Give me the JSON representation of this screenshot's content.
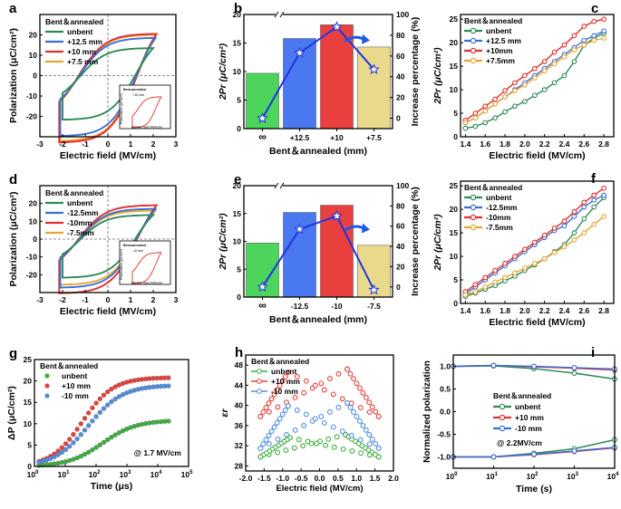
{
  "chart_data": [
    {
      "id": "a",
      "type": "line",
      "panel_label": "a",
      "xlabel": "Electric field (MV/cm)",
      "ylabel": "Polarization (μC/cm²)",
      "xlim": [
        -3,
        3
      ],
      "ylim": [
        -30,
        30
      ],
      "xticks": [
        -3,
        -2,
        -1,
        0,
        1,
        2,
        3
      ],
      "yticks": [
        -20,
        -10,
        0,
        10,
        20
      ],
      "legend_title": "Bent＆annealed",
      "series": [
        {
          "name": "unbent",
          "color": "#2e8b57",
          "emax": 2.0,
          "pmax": 13.5,
          "pr": 5.0
        },
        {
          "name": "+12.5 mm",
          "color": "#3a6fd8",
          "emax": 2.1,
          "pmax": 18.5,
          "pr": 8.0
        },
        {
          "name": "+10 mm",
          "color": "#e0302c",
          "emax": 2.15,
          "pmax": 20.5,
          "pr": 9.0
        },
        {
          "name": "+7.5 mm",
          "color": "#e8a531",
          "emax": 2.1,
          "pmax": 20.0,
          "pr": 7.0
        }
      ],
      "inset": {
        "title": "Bent-annealed",
        "legend": "+10 mm",
        "xlabel": "Electric field (MV/cm)",
        "ylabel": "Polarization (μC/cm²)"
      }
    },
    {
      "id": "b",
      "type": "bar",
      "panel_label": "b",
      "categories": [
        "∞",
        "+12.5",
        "+10",
        "+7.5"
      ],
      "values": [
        9.7,
        15.8,
        18.2,
        14.3
      ],
      "bar_colors": [
        "#4cd45c",
        "#4a78f0",
        "#ea4040",
        "#e9d98a"
      ],
      "ylabel": "2Pr (μC/cm²)",
      "ylim": [
        0,
        20
      ],
      "yticks": [
        0,
        5,
        10,
        15,
        20
      ],
      "xlabel": "Bent＆annealed (mm)",
      "y2label": "Increase percentage (%)",
      "y2lim": [
        -10,
        100
      ],
      "y2ticks": [
        0,
        20,
        40,
        60,
        80,
        100
      ],
      "line_values": [
        0,
        63,
        88,
        47
      ]
    },
    {
      "id": "c",
      "type": "line",
      "panel_label": "c",
      "xlabel": "Electric field (MV/cm)",
      "ylabel": "2Pr (μC/cm²)",
      "xlim": [
        1.35,
        2.9
      ],
      "ylim": [
        0,
        26
      ],
      "xticks": [
        1.4,
        1.6,
        1.8,
        2.0,
        2.2,
        2.4,
        2.6,
        2.8
      ],
      "yticks": [
        0,
        5,
        10,
        15,
        20,
        25
      ],
      "legend_title": "Bent＆annealed",
      "x": [
        1.4,
        1.5,
        1.6,
        1.7,
        1.8,
        1.9,
        2.0,
        2.1,
        2.2,
        2.3,
        2.4,
        2.5,
        2.6,
        2.7,
        2.8
      ],
      "series": [
        {
          "name": "unbent",
          "color": "#2e8b57",
          "values": [
            1.8,
            2.2,
            3.0,
            4.0,
            5.3,
            6.5,
            7.5,
            8.8,
            10.0,
            11.5,
            13.0,
            16.0,
            19.5,
            21.0,
            22.0
          ]
        },
        {
          "name": "+12.5 mm",
          "color": "#3a6fd8",
          "values": [
            3.0,
            4.0,
            5.5,
            7.0,
            8.5,
            10.0,
            11.5,
            13.0,
            14.5,
            16.0,
            17.5,
            19.0,
            20.5,
            21.5,
            22.5
          ]
        },
        {
          "name": "+10mm",
          "color": "#e0302c",
          "values": [
            3.5,
            5.0,
            6.5,
            8.0,
            9.8,
            11.5,
            13.0,
            14.5,
            16.0,
            18.0,
            19.5,
            21.5,
            23.5,
            24.5,
            25.0
          ]
        },
        {
          "name": "+7.5mm",
          "color": "#e8a531",
          "values": [
            3.0,
            4.0,
            5.5,
            7.0,
            8.5,
            9.8,
            11.0,
            12.5,
            14.0,
            15.5,
            17.0,
            18.5,
            19.5,
            20.5,
            21.0
          ]
        }
      ]
    },
    {
      "id": "d",
      "type": "line",
      "panel_label": "d",
      "xlabel": "Electric field (MV/cm)",
      "ylabel": "Polarization (μC/cm²)",
      "xlim": [
        -3,
        3
      ],
      "ylim": [
        -30,
        30
      ],
      "xticks": [
        -3,
        -2,
        -1,
        0,
        1,
        2,
        3
      ],
      "yticks": [
        -20,
        -10,
        0,
        10,
        20
      ],
      "legend_title": "Bent＆annealed",
      "series": [
        {
          "name": "unbent",
          "color": "#2e8b57",
          "emax": 2.0,
          "pmax": 13.5,
          "pr": 5.0
        },
        {
          "name": "-12.5mm",
          "color": "#3a6fd8",
          "emax": 2.1,
          "pmax": 17.0,
          "pr": 7.5
        },
        {
          "name": "-10mm",
          "color": "#e0302c",
          "emax": 2.15,
          "pmax": 19.0,
          "pr": 8.5
        },
        {
          "name": "-7.5mm",
          "color": "#e8a531",
          "emax": 2.1,
          "pmax": 16.0,
          "pr": 5.0
        }
      ],
      "inset": {
        "title": "Bent-annealed",
        "legend": "-10 mm",
        "xlabel": "Electric field (MV/cm)",
        "ylabel": "Polarization (μC/cm²)"
      }
    },
    {
      "id": "e",
      "type": "bar",
      "panel_label": "e",
      "categories": [
        "∞",
        "-12.5",
        "-10",
        "-7.5"
      ],
      "values": [
        9.7,
        15.2,
        16.5,
        9.3
      ],
      "bar_colors": [
        "#4cd45c",
        "#4a78f0",
        "#ea4040",
        "#e9d98a"
      ],
      "ylabel": "2Pr (μC/cm²)",
      "ylim": [
        0,
        20
      ],
      "yticks": [
        0,
        5,
        10,
        15,
        20
      ],
      "xlabel": "Bent＆annealed (mm)",
      "y2label": "Increase percentage (%)",
      "y2lim": [
        -10,
        100
      ],
      "y2ticks": [
        0,
        20,
        40,
        60,
        80,
        100
      ],
      "line_values": [
        0,
        57,
        70,
        -3
      ]
    },
    {
      "id": "f",
      "type": "line",
      "panel_label": "f",
      "xlabel": "Electric field (MV/cm)",
      "ylabel": "2Pr (μC/cm²)",
      "xlim": [
        1.35,
        2.9
      ],
      "ylim": [
        0,
        26
      ],
      "xticks": [
        1.4,
        1.6,
        1.8,
        2.0,
        2.2,
        2.4,
        2.6,
        2.8
      ],
      "yticks": [
        0,
        5,
        10,
        15,
        20,
        25
      ],
      "legend_title": "Bent＆annealed",
      "x": [
        1.4,
        1.5,
        1.6,
        1.7,
        1.8,
        1.9,
        2.0,
        2.1,
        2.2,
        2.3,
        2.4,
        2.5,
        2.6,
        2.7,
        2.8
      ],
      "series": [
        {
          "name": "unbent",
          "color": "#2e8b57",
          "values": [
            1.5,
            2.2,
            3.0,
            3.8,
            4.8,
            5.8,
            7.0,
            8.2,
            9.5,
            11.0,
            12.5,
            15.0,
            18.0,
            20.5,
            22.5
          ]
        },
        {
          "name": "-12.5mm",
          "color": "#3a6fd8",
          "values": [
            2.0,
            3.5,
            5.0,
            6.5,
            8.0,
            9.5,
            11.0,
            12.5,
            14.0,
            15.5,
            16.5,
            18.5,
            20.5,
            22.0,
            23.0
          ]
        },
        {
          "name": "-10mm",
          "color": "#e0302c",
          "values": [
            2.5,
            4.0,
            5.5,
            7.0,
            8.5,
            10.0,
            11.5,
            13.0,
            14.5,
            16.0,
            17.5,
            19.5,
            21.5,
            23.0,
            24.5
          ]
        },
        {
          "name": "-7.5mm",
          "color": "#e8a531",
          "values": [
            1.8,
            2.5,
            3.5,
            4.5,
            5.5,
            6.5,
            7.5,
            8.5,
            9.5,
            10.8,
            12.0,
            13.5,
            15.0,
            16.8,
            18.5
          ]
        }
      ]
    },
    {
      "id": "g",
      "type": "scatter",
      "panel_label": "g",
      "xlabel": "Time (μs)",
      "ylabel": "ΔP (μC/cm²)",
      "xscale": "log",
      "xlim_log": [
        0,
        5
      ],
      "ylim": [
        0,
        25
      ],
      "xtick_exponents": [
        0,
        1,
        2,
        3,
        4,
        5
      ],
      "yticks": [
        0,
        5,
        10,
        15,
        20,
        25
      ],
      "legend_title": "Bent＆annealed",
      "annotation": "@ 1.7 MV/cm",
      "series": [
        {
          "name": "unbent",
          "color": "#3fae3f",
          "plateau": 10.8,
          "mid_log": 2.2,
          "width": 0.55
        },
        {
          "name": "+10 mm",
          "color": "#e8403a",
          "plateau": 20.8,
          "mid_log": 1.55,
          "width": 0.5
        },
        {
          "name": "-10 mm",
          "color": "#4f8fe0",
          "plateau": 19.0,
          "mid_log": 1.75,
          "width": 0.55
        }
      ]
    },
    {
      "id": "h",
      "type": "line",
      "panel_label": "h",
      "xlabel": "Electric field (MV/cm)",
      "ylabel": "εr",
      "xlim": [
        -2.0,
        2.0
      ],
      "ylim": [
        27,
        50
      ],
      "xticks": [
        -2.0,
        -1.5,
        -1.0,
        -0.5,
        0.0,
        0.5,
        1.0,
        1.5,
        2.0
      ],
      "yticks": [
        28,
        32,
        36,
        40,
        44,
        48
      ],
      "legend_title": "Bent＆annealed",
      "series": [
        {
          "name": "unbent",
          "color": "#3fae3f",
          "base": 29.8,
          "peak": 34.2,
          "peak_e": 0.7
        },
        {
          "name": "+10 mm",
          "color": "#e8403a",
          "base": 37.8,
          "peak": 47.2,
          "peak_e": 0.75
        },
        {
          "name": "-10 mm",
          "color": "#4f8fe0",
          "base": 31.5,
          "peak": 40.5,
          "peak_e": 0.75
        }
      ]
    },
    {
      "id": "i",
      "type": "line",
      "panel_label": "i",
      "xlabel": "Time (s)",
      "ylabel": "Normalized polarization",
      "xscale": "log",
      "xlim_log": [
        0,
        4
      ],
      "ylim": [
        -1.25,
        1.25
      ],
      "xtick_exponents": [
        0,
        1,
        2,
        3,
        4
      ],
      "yticks": [
        -1.0,
        -0.5,
        0.0,
        0.5,
        1.0
      ],
      "legend_title": "Bent＆annealed",
      "annotation": "@ 2.2MV/cm",
      "x_log": [
        0,
        1,
        2,
        3,
        4
      ],
      "series": [
        {
          "name": "unbent",
          "color": "#2e8b57",
          "upper": [
            1.0,
            1.01,
            0.95,
            0.85,
            0.72
          ],
          "lower": [
            -1.0,
            -1.0,
            -0.92,
            -0.82,
            -0.62
          ]
        },
        {
          "name": "+10 mm",
          "color": "#e0302c",
          "upper": [
            1.0,
            1.02,
            0.99,
            0.96,
            0.92
          ],
          "lower": [
            -1.0,
            -1.0,
            -0.95,
            -0.88,
            -0.8
          ]
        },
        {
          "name": "-10 mm",
          "color": "#3a6fd8",
          "upper": [
            1.0,
            1.02,
            1.0,
            0.97,
            0.94
          ],
          "lower": [
            -1.0,
            -1.0,
            -0.94,
            -0.87,
            -0.79
          ]
        }
      ]
    }
  ]
}
